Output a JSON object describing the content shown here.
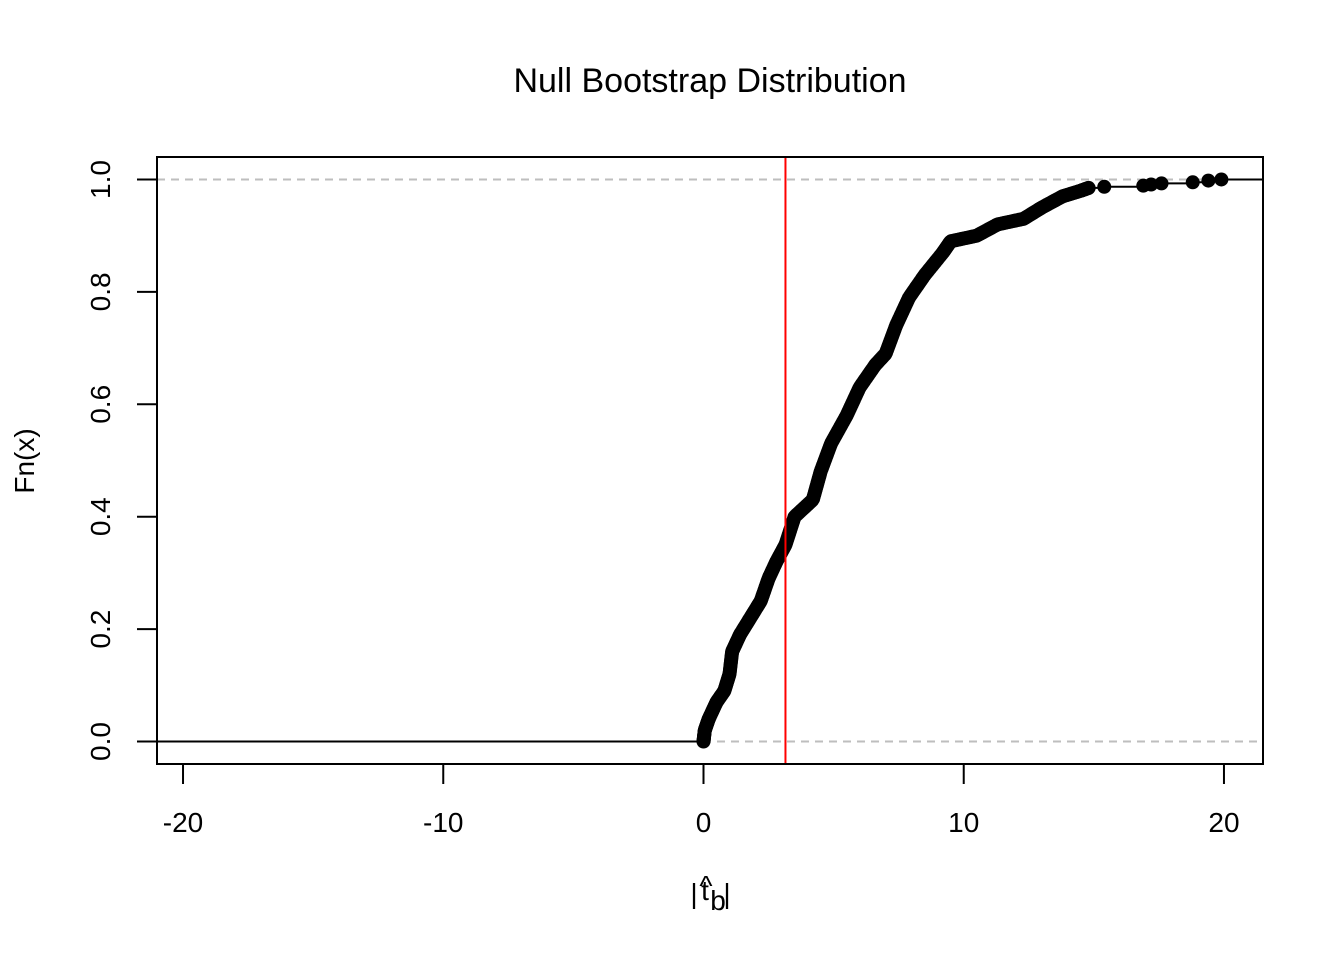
{
  "chart_data": {
    "type": "step",
    "title": "Null Bootstrap Distribution",
    "xlabel": "|t̂_b|",
    "xlabel_parts": {
      "hat": "^",
      "main": "t",
      "sub": "b"
    },
    "ylabel": "Fn(x)",
    "xlim": [
      -21,
      21.5
    ],
    "ylim": [
      -0.04,
      1.04
    ],
    "x_ticks": [
      -20,
      -10,
      0,
      10,
      20
    ],
    "x_tick_labels": [
      "-20",
      "-10",
      "0",
      "10",
      "20"
    ],
    "y_ticks": [
      0.0,
      0.2,
      0.4,
      0.6,
      0.8,
      1.0
    ],
    "y_tick_labels": [
      "0.0",
      "0.2",
      "0.4",
      "0.6",
      "0.8",
      "1.0"
    ],
    "reference_hlines": [
      0,
      1
    ],
    "vline": {
      "x": 3.15,
      "color": "#ff0000"
    },
    "ecdf_knots": [
      [
        0.0,
        0.0
      ],
      [
        0.05,
        0.02
      ],
      [
        0.2,
        0.04
      ],
      [
        0.5,
        0.07
      ],
      [
        0.8,
        0.09
      ],
      [
        1.0,
        0.12
      ],
      [
        1.1,
        0.16
      ],
      [
        1.4,
        0.19
      ],
      [
        1.8,
        0.22
      ],
      [
        2.2,
        0.25
      ],
      [
        2.5,
        0.29
      ],
      [
        2.8,
        0.32
      ],
      [
        3.15,
        0.35
      ],
      [
        3.5,
        0.4
      ],
      [
        4.2,
        0.43
      ],
      [
        4.5,
        0.48
      ],
      [
        4.9,
        0.53
      ],
      [
        5.5,
        0.58
      ],
      [
        6.0,
        0.63
      ],
      [
        6.6,
        0.67
      ],
      [
        7.0,
        0.69
      ],
      [
        7.4,
        0.74
      ],
      [
        7.9,
        0.79
      ],
      [
        8.5,
        0.83
      ],
      [
        9.2,
        0.87
      ],
      [
        9.5,
        0.89
      ],
      [
        10.5,
        0.9
      ],
      [
        11.3,
        0.92
      ],
      [
        12.3,
        0.93
      ],
      [
        13.0,
        0.95
      ],
      [
        13.8,
        0.97
      ],
      [
        14.5,
        0.98
      ],
      [
        14.8,
        0.985
      ]
    ],
    "ecdf_n": 400,
    "outlier_points": [
      [
        15.4,
        0.987
      ],
      [
        16.9,
        0.989
      ],
      [
        17.2,
        0.991
      ],
      [
        17.6,
        0.993
      ],
      [
        18.8,
        0.995
      ],
      [
        19.4,
        0.998
      ],
      [
        19.9,
        1.0
      ]
    ]
  }
}
